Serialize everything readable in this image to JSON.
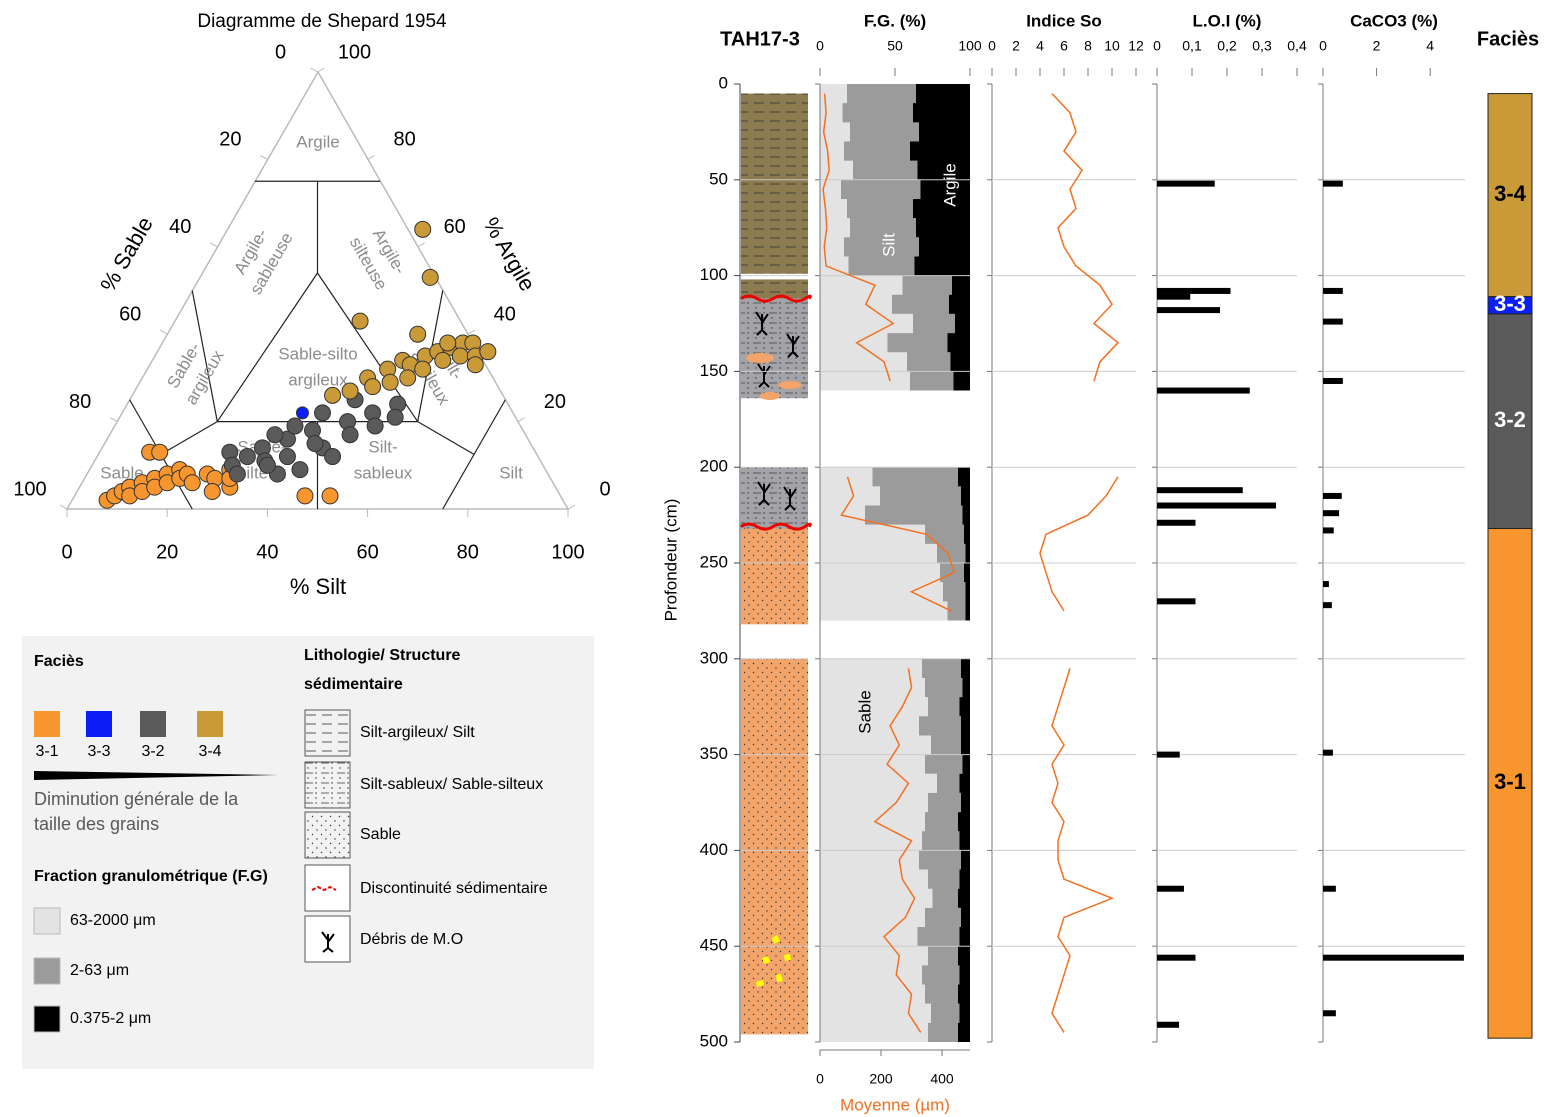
{
  "chart_data": [
    {
      "type": "ternary",
      "title": "Diagramme de Shepard 1954",
      "xlabel": "% Silt",
      "left_label": "% Sable",
      "right_label": "% Argile",
      "silt_ticks": [
        0,
        20,
        40,
        60,
        80,
        100
      ],
      "sable_ticks": [
        0,
        20,
        40,
        60,
        80,
        100
      ],
      "argile_ticks": [
        0,
        20,
        40,
        60,
        80,
        100
      ],
      "regions": [
        [
          "Argile"
        ],
        [
          "Argile-",
          "sableuse"
        ],
        [
          "Argile-",
          "silteuse"
        ],
        [
          "Sable-",
          "argileux"
        ],
        [
          "Sable-silto",
          "argileux"
        ],
        [
          "Silt-",
          "argileux"
        ],
        [
          "Sable-",
          "silteux"
        ],
        [
          "Silt-",
          "sableux"
        ],
        [
          "Sable"
        ],
        [
          "Silt"
        ]
      ],
      "series": [
        {
          "name": "3-1",
          "color": "#f7962f",
          "silt": [
            7,
            8,
            9,
            10,
            11,
            12,
            13,
            14,
            15,
            16,
            17,
            18,
            19,
            20,
            22,
            24,
            26,
            28,
            30,
            29,
            27,
            10,
            12,
            46,
            51
          ],
          "argile": [
            2,
            3,
            4,
            5,
            3,
            6,
            4,
            7,
            5,
            8,
            6,
            9,
            7,
            8,
            6,
            8,
            7,
            9,
            5,
            7,
            4,
            13,
            13,
            3,
            3
          ]
        },
        {
          "name": "3-3",
          "color": "#0a1ef5",
          "silt": [
            36
          ],
          "argile": [
            22
          ]
        },
        {
          "name": "3-2",
          "color": "#5a5a5a",
          "silt": [
            26,
            28,
            30,
            32,
            34,
            36,
            38,
            40,
            42,
            44,
            46,
            48,
            50,
            52,
            54,
            45,
            40,
            36,
            33,
            42,
            38,
            47,
            55,
            30,
            35
          ],
          "argile": [
            13,
            10,
            8,
            14,
            11,
            16,
            12,
            18,
            9,
            14,
            20,
            17,
            22,
            19,
            24,
            25,
            22,
            19,
            17,
            15,
            8,
            12,
            21,
            12,
            10
          ]
        },
        {
          "name": "3-4",
          "color": "#c99a37",
          "silt": [
            45,
            48,
            50,
            52,
            54,
            56,
            58,
            60,
            62,
            55,
            50,
            47,
            58,
            61,
            64,
            66,
            65,
            43,
            40,
            53,
            37,
            39,
            46,
            50,
            57
          ],
          "argile": [
            30,
            32,
            34,
            33,
            35,
            36,
            37,
            38,
            38,
            32,
            29,
            28,
            34,
            35,
            35,
            36,
            33,
            27,
            26,
            30,
            43,
            64,
            53,
            40,
            38
          ]
        }
      ]
    },
    {
      "type": "lithology",
      "title": "TAH17-3",
      "ylabel": "Profondeur (cm)",
      "ylim": [
        0,
        500
      ],
      "yticks": [
        0,
        50,
        100,
        150,
        200,
        250,
        300,
        350,
        400,
        450,
        500
      ],
      "units": [
        {
          "top": 5,
          "bottom": 99,
          "color": "#8c7b4f",
          "pattern": "lines"
        },
        {
          "top": 102,
          "bottom": 112,
          "color": "#8c7b4f",
          "pattern": "lines"
        },
        {
          "top": 112,
          "bottom": 164,
          "color": "#a3a3a8",
          "pattern": "dotlines"
        },
        {
          "top": 200,
          "bottom": 232,
          "color": "#a3a3a8",
          "pattern": "dotlines"
        },
        {
          "top": 232,
          "bottom": 282,
          "color": "#f2a46b",
          "pattern": "dots"
        },
        {
          "top": 300,
          "bottom": 496,
          "color": "#f2a46b",
          "pattern": "dots"
        }
      ],
      "discontinuities": [
        112,
        231
      ]
    },
    {
      "type": "stacked-area",
      "title": "F.G. (%)",
      "xlim": [
        0,
        100
      ],
      "xticks": [
        0,
        50,
        100
      ],
      "y": [
        5,
        15,
        25,
        35,
        45,
        55,
        65,
        75,
        85,
        95,
        105,
        115,
        125,
        135,
        145,
        155,
        165,
        175,
        185,
        195,
        205,
        215,
        225,
        235,
        245,
        255,
        265,
        275,
        285,
        295,
        305,
        315,
        325,
        335,
        345,
        355,
        365,
        375,
        385,
        395,
        405,
        415,
        425,
        435,
        445,
        455,
        465,
        475,
        485,
        495
      ],
      "series": [
        {
          "name": "63-2000 μm",
          "color": "#e3e3e3",
          "values": [
            18,
            15,
            20,
            16,
            22,
            14,
            18,
            20,
            16,
            19,
            55,
            48,
            62,
            45,
            58,
            60,
            null,
            null,
            null,
            null,
            35,
            40,
            30,
            70,
            78,
            80,
            82,
            85,
            null,
            null,
            68,
            70,
            72,
            66,
            74,
            70,
            78,
            72,
            70,
            68,
            66,
            72,
            75,
            70,
            65,
            72,
            68,
            70,
            74,
            72
          ]
        },
        {
          "name": "2-63 μm",
          "color": "#9b9b9b",
          "values": [
            46,
            47,
            46,
            44,
            43,
            53,
            44,
            44,
            50,
            44,
            33,
            38,
            28,
            40,
            29,
            29,
            null,
            null,
            null,
            null,
            57,
            54,
            65,
            26,
            19,
            16,
            15,
            12,
            null,
            null,
            26,
            25,
            21,
            28,
            20,
            25,
            15,
            22,
            22,
            25,
            28,
            21,
            17,
            24,
            28,
            20,
            25,
            22,
            19,
            20
          ]
        },
        {
          "name": "0.375-2 μm",
          "color": "#000000",
          "values": [
            36,
            38,
            34,
            40,
            35,
            33,
            38,
            36,
            34,
            37,
            12,
            14,
            10,
            15,
            13,
            11,
            null,
            null,
            null,
            null,
            8,
            6,
            5,
            4,
            3,
            4,
            3,
            3,
            null,
            null,
            6,
            5,
            7,
            6,
            6,
            5,
            7,
            6,
            8,
            7,
            6,
            7,
            8,
            6,
            7,
            8,
            7,
            8,
            7,
            8
          ]
        }
      ],
      "line": {
        "name": "Moyenne (µm)",
        "color": "#f37021",
        "xlim": [
          0,
          500
        ],
        "xticks": [
          0,
          200,
          400
        ],
        "values": [
          15,
          20,
          12,
          25,
          30,
          10,
          18,
          22,
          14,
          20,
          180,
          150,
          240,
          120,
          210,
          230,
          null,
          null,
          null,
          null,
          90,
          110,
          70,
          350,
          420,
          440,
          300,
          430,
          null,
          null,
          290,
          300,
          270,
          230,
          260,
          220,
          290,
          250,
          180,
          300,
          260,
          270,
          310,
          280,
          210,
          260,
          250,
          300,
          290,
          330
        ]
      },
      "annotations": [
        "Silt",
        "Argile",
        "Sable"
      ]
    },
    {
      "type": "line",
      "title": "Indice So",
      "xlim": [
        0,
        12
      ],
      "xticks": [
        0,
        2,
        4,
        6,
        8,
        10,
        12
      ],
      "color": "#f37021",
      "y": [
        5,
        15,
        25,
        35,
        45,
        55,
        65,
        75,
        85,
        95,
        105,
        115,
        125,
        135,
        145,
        155,
        165,
        175,
        185,
        195,
        205,
        215,
        225,
        235,
        245,
        255,
        265,
        275,
        285,
        295,
        305,
        315,
        325,
        335,
        345,
        355,
        365,
        375,
        385,
        395,
        405,
        415,
        425,
        435,
        445,
        455,
        465,
        475,
        485,
        495
      ],
      "values": [
        5,
        6.5,
        7,
        6,
        7.5,
        6.5,
        7,
        5.5,
        6,
        7,
        9,
        10,
        8.5,
        10.5,
        9,
        8.5,
        null,
        null,
        null,
        null,
        10.5,
        9.5,
        8,
        4.5,
        4,
        4.5,
        5,
        6,
        null,
        null,
        6.5,
        6,
        5.5,
        5,
        6,
        5,
        5.5,
        5,
        6,
        5.5,
        5.5,
        6,
        10,
        6,
        5.5,
        6.5,
        6,
        5.5,
        5,
        6
      ]
    },
    {
      "type": "bar",
      "title": "L.O.I (%)",
      "xlim": [
        0,
        0.4
      ],
      "color": "#000000",
      "xticks": [
        0,
        {
          "value": 0.1,
          "label": "0,1"
        },
        {
          "value": 0.2,
          "label": "0,2"
        },
        {
          "value": 0.3,
          "label": "0,3"
        },
        {
          "value": 0.4,
          "label": "0,4"
        }
      ],
      "y": [
        52,
        108,
        111,
        118,
        160,
        212,
        220,
        229,
        270,
        350,
        420,
        456,
        491
      ],
      "values": [
        0.165,
        0.21,
        0.095,
        0.18,
        0.265,
        0.245,
        0.34,
        0.11,
        0.11,
        0.065,
        0.077,
        0.11,
        0.063
      ]
    },
    {
      "type": "bar",
      "title": "CaCO3 (%)",
      "xlim": [
        0,
        5.3
      ],
      "xticks": [
        0,
        2,
        4
      ],
      "color": "#000000",
      "y": [
        52,
        108,
        124,
        155,
        215,
        224,
        233,
        261,
        272,
        349,
        420,
        456,
        485
      ],
      "values": [
        0.74,
        0.74,
        0.74,
        0.74,
        0.7,
        0.6,
        0.4,
        0.22,
        0.33,
        0.37,
        0.48,
        5.26,
        0.48
      ]
    },
    {
      "type": "facies",
      "title": "Faciès",
      "segments": [
        {
          "name": "3-4",
          "top": 5,
          "bottom": 111,
          "color": "#c99a37",
          "text_color": "#000000"
        },
        {
          "name": "3-3",
          "top": 111,
          "bottom": 120,
          "color": "#0a1ef5",
          "text_color": "#ffffff"
        },
        {
          "name": "3-2",
          "top": 120,
          "bottom": 232,
          "color": "#5a5a5a",
          "text_color": "#ffffff"
        },
        {
          "name": "3-1",
          "top": 232,
          "bottom": 498,
          "color": "#f7962f",
          "text_color": "#000000"
        }
      ]
    }
  ],
  "legend": {
    "facies_title": "Faciès",
    "grain_note": [
      "Diminution générale de la",
      "taille des grains"
    ],
    "fg_title": "Fraction granulométrique (F.G)",
    "litho_title": [
      "Lithologie/ Structure",
      "sédimentaire"
    ],
    "litho_items": [
      "Silt-argileux/ Silt",
      "Silt-sableux/ Sable-silteux",
      "Sable",
      "Discontinuité sédimentaire",
      "Débris de M.O"
    ]
  }
}
